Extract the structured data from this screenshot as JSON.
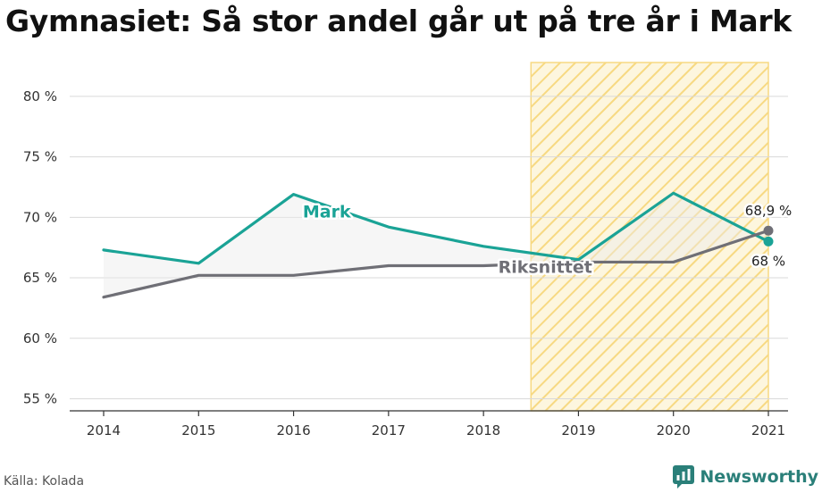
{
  "title": "Gymnasiet: Så stor andel går ut på tre år i Mark",
  "source": "Källa: Kolada",
  "brand": "Newsworthy",
  "colors": {
    "mark": "#1aa396",
    "riks": "#6f6f76",
    "highlight": "#f7d982",
    "grid": "#d9d9d9",
    "fill": "#ececec"
  },
  "chart_data": {
    "type": "line",
    "x": [
      2014,
      2015,
      2016,
      2017,
      2018,
      2019,
      2020,
      2021
    ],
    "series": [
      {
        "name": "Mark",
        "values": [
          67.3,
          66.2,
          71.9,
          69.2,
          67.6,
          66.5,
          72.0,
          68.0
        ],
        "end_label": "68 %"
      },
      {
        "name": "Riksnittet",
        "values": [
          63.4,
          65.2,
          65.2,
          66.0,
          66.0,
          66.3,
          66.3,
          68.9
        ],
        "end_label": "68,9 %"
      }
    ],
    "ylim": [
      54,
      82.8
    ],
    "yticks": [
      55,
      60,
      65,
      70,
      75,
      80
    ],
    "ytick_labels": [
      "55 %",
      "60 %",
      "65 %",
      "70 %",
      "75 %",
      "80 %"
    ],
    "xtick_labels": [
      "2014",
      "2015",
      "2016",
      "2017",
      "2018",
      "2019",
      "2020",
      "2021"
    ],
    "highlight_range": [
      2018.5,
      2021
    ],
    "grid": true,
    "legend": "inline labels"
  }
}
